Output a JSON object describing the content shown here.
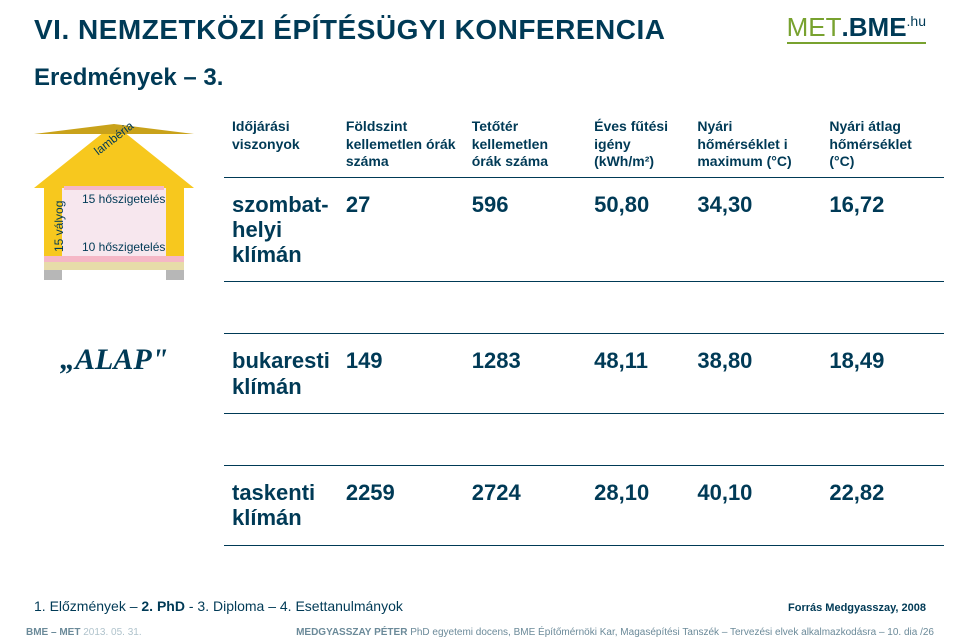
{
  "header": {
    "title": "VI. NEMZETKÖZI ÉPÍTÉSÜGYI KONFERENCIA",
    "logo_met": "MET",
    "logo_bme": ".BME",
    "logo_hu": ".hu"
  },
  "subtitle": "Eredmények – 3.",
  "house": {
    "lamberia": "lambéria",
    "ins15": "15 hőszigetelés",
    "ins10": "10 hőszigetelés",
    "valyog": "15 vályog",
    "colors": {
      "wall": "#f7c81e",
      "room": "#f7e7ee",
      "floor_top": "#f5b7c6",
      "floor_bot": "#e7dca9",
      "foot": "#b7b7b7"
    }
  },
  "table": {
    "headers": [
      "Időjárási viszonyok",
      "Földszint kellemetlen órák száma",
      "Tetőtér kellemetlen órák száma",
      "Éves fűtési igény (kWh/m²)",
      "Nyári hőmérséklet i maximum (°C)",
      "Nyári átlag hőmérséklet (°C)"
    ],
    "rows": [
      {
        "label_bold": "szombat-",
        "label_rest": "helyi klímán",
        "v": [
          "27",
          "596",
          "50,80",
          "34,30",
          "16,72"
        ]
      },
      {
        "label_bold": "bukaresti",
        "label_rest": "klímán",
        "v": [
          "149",
          "1283",
          "48,11",
          "38,80",
          "18,49"
        ]
      },
      {
        "label_bold": "taskenti",
        "label_rest": "klímán",
        "v": [
          "2259",
          "2724",
          "28,10",
          "40,10",
          "22,82"
        ]
      }
    ],
    "group_label": "„ALAP\""
  },
  "nav": {
    "text_before": "1. Előzmények – ",
    "bold": "2. PhD",
    "text_after": " - 3. Diploma – 4. Esettanulmányok",
    "source": "Forrás Medgyasszay, 2008"
  },
  "footer": {
    "left_bold": "BME – MET",
    "left_light": " 2013. 05. 31.",
    "right": "MEDGYASSZAY PÉTER PhD egyetemi docens, BME Építőmérnöki Kar, Magasépítési Tanszék – Tervezési elvek alkalmazkodásra – 10. dia /26"
  }
}
